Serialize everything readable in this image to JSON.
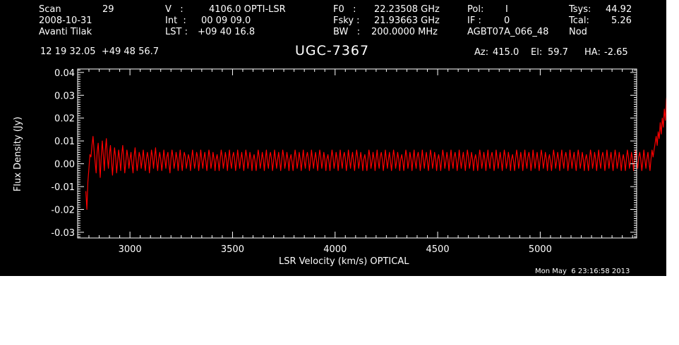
{
  "header": {
    "scan_label": "Scan",
    "scan_value": "29",
    "date": "2008-10-31",
    "observer": "Avanti Tilak",
    "v_label": "V   :",
    "v_value": "4106.0 OPTI-LSR",
    "int_label": "Int  :",
    "int_value": "00 09 09.0",
    "lst_label": "LST :",
    "lst_value": "+09 40 16.8",
    "f0_label": "F0   :",
    "f0_value": "22.23508 GHz",
    "fsky_label": "Fsky :",
    "fsky_value": "21.93663 GHz",
    "bw_label": "BW   :",
    "bw_value": "200.0000 MHz",
    "pol_label": "Pol:",
    "pol_value": "I",
    "if_label": "IF :",
    "if_value": "0",
    "project": "AGBT07A_066_48",
    "tsys_label": "Tsys:",
    "tsys_value": "44.92",
    "tcal_label": "Tcal:",
    "tcal_value": "5.26",
    "mode": "Nod",
    "coords": "12 19 32.05  +49 48 56.7",
    "source": "UGC-7367",
    "az_label": "Az:",
    "az_value": "415.0",
    "el_label": "El:",
    "el_value": "59.7",
    "ha_label": "HA:",
    "ha_value": "-2.65"
  },
  "timestamp": "Mon May  6 23:16:58 2013",
  "colors": {
    "background": "#000000",
    "axes": "#ffffff",
    "trace": "#ff0000"
  },
  "chart_data": {
    "type": "line",
    "title": "UGC-7367",
    "xlabel": "LSR Velocity (km/s) OPTICAL",
    "ylabel": "Flux Density (Jy)",
    "xlim": [
      2745,
      5470
    ],
    "ylim": [
      -0.0325,
      0.0415
    ],
    "x_ticks": [
      3000,
      3500,
      4000,
      4500,
      5000
    ],
    "x_tick_labels": [
      "3000",
      "3500",
      "4000",
      "4500",
      "5000"
    ],
    "y_ticks": [
      -0.03,
      -0.02,
      -0.01,
      0.0,
      0.01,
      0.02,
      0.03,
      0.04
    ],
    "y_tick_labels": [
      "-0.03",
      "-0.02",
      "-0.01",
      "0.00",
      "0.01",
      "0.02",
      "0.03",
      "0.04"
    ],
    "grid": false,
    "series": [
      {
        "color": "#ff0000",
        "x_start": 2785,
        "x_step": 5,
        "values": [
          -0.012,
          -0.02,
          -0.008,
          -0.002,
          0.004,
          0.003,
          0.008,
          0.012,
          0.006,
          0.001,
          -0.004,
          0.005,
          0.009,
          0.002,
          -0.006,
          0.003,
          0.01,
          0.004,
          -0.003,
          0.006,
          0.011,
          0.003,
          -0.002,
          0.004,
          0.008,
          0.001,
          -0.005,
          0.002,
          0.007,
          0.003,
          -0.004,
          0.001,
          0.006,
          0.002,
          -0.003,
          0.004,
          0.008,
          0.002,
          -0.004,
          0.001,
          0.006,
          0.003,
          -0.002,
          0.002,
          0.005,
          0.0,
          -0.004,
          0.003,
          0.007,
          0.002,
          -0.003,
          0.001,
          0.005,
          0.003,
          -0.002,
          0.002,
          0.006,
          0.001,
          -0.003,
          0.002,
          0.005,
          0.002,
          -0.004,
          0.001,
          0.006,
          0.003,
          -0.002,
          0.003,
          0.007,
          0.001,
          -0.003,
          0.002,
          0.005,
          0.002,
          -0.003,
          0.001,
          0.006,
          0.002,
          -0.002,
          0.003,
          0.005,
          0.0,
          -0.004,
          0.002,
          0.006,
          0.003,
          -0.002,
          0.001,
          0.005,
          0.002,
          -0.003,
          0.002,
          0.006,
          0.001,
          -0.003,
          0.002,
          0.005,
          0.003,
          -0.002,
          0.001,
          0.004,
          0.002,
          -0.003,
          0.002,
          0.006,
          0.002,
          -0.002,
          0.001,
          0.005,
          0.003,
          -0.003,
          0.001,
          0.006,
          0.002,
          -0.002,
          0.002,
          0.005,
          0.001,
          -0.003,
          0.002,
          0.006,
          0.003,
          -0.002,
          0.001,
          0.005,
          0.002,
          -0.003,
          0.002,
          0.004,
          0.001,
          -0.003,
          0.002,
          0.006,
          0.003,
          -0.002,
          0.001,
          0.005,
          0.002,
          -0.003,
          0.002,
          0.006,
          0.001,
          -0.002,
          0.003,
          0.005,
          0.002,
          -0.003,
          0.001,
          0.006,
          0.002,
          -0.002,
          0.002,
          0.005,
          0.001,
          -0.003,
          0.002,
          0.006,
          0.003,
          -0.002,
          0.001,
          0.005,
          0.002,
          -0.003,
          0.002,
          0.004,
          0.001,
          -0.003,
          0.002,
          0.006,
          0.003,
          -0.002,
          0.001,
          0.005,
          0.002,
          -0.003,
          0.002,
          0.006,
          0.001,
          -0.002,
          0.003,
          0.005,
          0.002,
          -0.003,
          0.001,
          0.006,
          0.002,
          -0.002,
          0.002,
          0.005,
          0.001,
          -0.003,
          0.002,
          0.006,
          0.003,
          -0.002,
          0.001,
          0.005,
          0.002,
          -0.003,
          0.002,
          0.004,
          0.001,
          -0.003,
          0.002,
          0.006,
          0.003,
          -0.002,
          0.001,
          0.005,
          0.002,
          -0.003,
          0.002,
          0.006,
          0.001,
          -0.002,
          0.003,
          0.005,
          0.002,
          -0.003,
          0.001,
          0.006,
          0.002,
          -0.002,
          0.002,
          0.005,
          0.001,
          -0.003,
          0.002,
          0.006,
          0.003,
          -0.002,
          0.001,
          0.005,
          0.002,
          -0.003,
          0.002,
          0.004,
          0.001,
          -0.003,
          0.002,
          0.006,
          0.003,
          -0.002,
          0.001,
          0.005,
          0.002,
          -0.003,
          0.002,
          0.006,
          0.001,
          -0.002,
          0.003,
          0.005,
          0.002,
          -0.003,
          0.001,
          0.006,
          0.002,
          -0.002,
          0.002,
          0.005,
          0.001,
          -0.003,
          0.002,
          0.006,
          0.003,
          -0.002,
          0.001,
          0.005,
          0.002,
          -0.003,
          0.002,
          0.004,
          0.001,
          -0.003,
          0.002,
          0.006,
          0.003,
          -0.002,
          0.001,
          0.005,
          0.002,
          -0.003,
          0.002,
          0.006,
          0.001,
          -0.002,
          0.003,
          0.005,
          0.002,
          -0.003,
          0.001,
          0.006,
          0.002,
          -0.002,
          0.002,
          0.005,
          0.001,
          -0.003,
          0.002,
          0.006,
          0.003,
          -0.002,
          0.001,
          0.005,
          0.002,
          -0.003,
          0.002,
          0.004,
          0.001,
          -0.003,
          0.002,
          0.006,
          0.003,
          -0.002,
          0.001,
          0.005,
          0.002,
          -0.003,
          0.002,
          0.006,
          0.001,
          -0.002,
          0.003,
          0.005,
          0.002,
          -0.003,
          0.001,
          0.006,
          0.002,
          -0.002,
          0.002,
          0.005,
          0.001,
          -0.003,
          0.002,
          0.006,
          0.003,
          -0.002,
          0.001,
          0.005,
          0.002,
          -0.003,
          0.002,
          0.004,
          0.001,
          -0.003,
          0.002,
          0.006,
          0.003,
          -0.002,
          0.001,
          0.005,
          0.002,
          -0.003,
          0.002,
          0.006,
          0.001,
          -0.002,
          0.003,
          0.005,
          0.002,
          -0.003,
          0.001,
          0.006,
          0.002,
          -0.002,
          0.002,
          0.005,
          0.001,
          -0.003,
          0.002,
          0.006,
          0.003,
          -0.002,
          0.001,
          0.005,
          0.002,
          -0.003,
          0.002,
          0.004,
          0.001,
          -0.003,
          0.002,
          0.006,
          0.003,
          -0.002,
          0.001,
          0.005,
          0.002,
          -0.003,
          0.002,
          0.006,
          0.001,
          -0.002,
          0.003,
          0.005,
          0.002,
          -0.003,
          0.001,
          0.006,
          0.002,
          -0.002,
          0.002,
          0.005,
          0.001,
          -0.003,
          0.002,
          0.006,
          0.003,
          -0.002,
          0.001,
          0.005,
          0.002,
          -0.003,
          0.002,
          0.004,
          0.001,
          -0.003,
          0.002,
          0.006,
          0.003,
          -0.002,
          0.001,
          0.005,
          0.002,
          -0.003,
          0.002,
          0.006,
          0.001,
          -0.002,
          0.003,
          0.005,
          0.002,
          -0.003,
          0.001,
          0.006,
          0.002,
          -0.002,
          0.002,
          0.005,
          0.001,
          -0.003,
          0.002,
          0.006,
          0.003,
          -0.002,
          0.001,
          0.005,
          0.002,
          -0.003,
          0.002,
          0.004,
          0.001,
          -0.003,
          0.002,
          0.006,
          0.003,
          -0.002,
          0.001,
          0.005,
          0.002,
          -0.003,
          0.002,
          0.006,
          0.001,
          -0.002,
          0.003,
          0.005,
          0.002,
          -0.003,
          0.001,
          0.006,
          0.002,
          -0.002,
          0.002,
          0.005,
          0.001,
          -0.003,
          0.002,
          0.006,
          0.003,
          -0.002,
          0.001,
          0.005,
          0.002,
          -0.003,
          0.002,
          0.004,
          0.001,
          -0.003,
          0.002,
          0.006,
          0.003,
          -0.002,
          0.001,
          0.005,
          0.002,
          -0.003,
          0.002,
          0.006,
          0.001,
          -0.002,
          0.003,
          0.005,
          0.002,
          -0.003,
          0.001,
          0.006,
          0.002,
          -0.002,
          0.002,
          0.005,
          0.001,
          -0.003,
          0.002,
          0.006,
          0.003,
          -0.002,
          0.001,
          0.005,
          0.002,
          -0.003,
          0.002,
          0.004,
          0.001,
          -0.003,
          0.002,
          0.006,
          0.003,
          -0.002,
          0.001,
          0.005,
          0.002,
          -0.003,
          0.002,
          0.006,
          0.001,
          -0.002,
          0.003,
          0.005,
          0.002,
          -0.003,
          0.001,
          0.006,
          0.002,
          -0.002,
          0.002,
          0.005,
          0.001,
          -0.003,
          0.002,
          0.006,
          0.003,
          0.006,
          0.009,
          0.012,
          0.008,
          0.014,
          0.011,
          0.018,
          0.013,
          0.02,
          0.016,
          0.024,
          0.019,
          0.028,
          0.032,
          0.02
        ]
      }
    ]
  }
}
